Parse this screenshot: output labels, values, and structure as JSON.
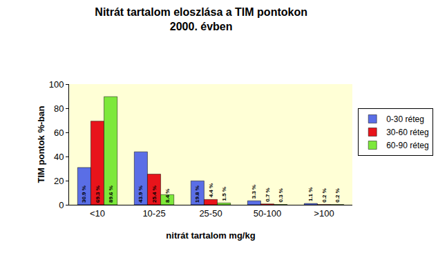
{
  "chart_data": {
    "type": "bar",
    "title": "Nitrát tartalom eloszlása a TIM pontokon\n2000. évben",
    "x_label": "nitrát tartalom mg/kg",
    "y_label": "TIM pontok %-ban",
    "categories": [
      "<10",
      "10-25",
      "25-50",
      "50-100",
      ">100"
    ],
    "series": [
      {
        "name": "0-30 réteg",
        "color": "#5a6ee6",
        "values": [
          30.9,
          43.9,
          19.8,
          3.3,
          1.1
        ],
        "value_labels": [
          "30.9 %",
          "43.9 %",
          "19.8 %",
          "3.3 %",
          "1.1 %"
        ]
      },
      {
        "name": "30-60 réteg",
        "color": "#e8141b",
        "values": [
          69.3,
          25.4,
          4.4,
          0.7,
          0.2
        ],
        "value_labels": [
          "69.3 %",
          "25.4 %",
          "4.4 %",
          "0.7 %",
          "0.2 %"
        ]
      },
      {
        "name": "60-90 réteg",
        "color": "#7de83b",
        "values": [
          89.6,
          8.4,
          1.5,
          0.3,
          0.2
        ],
        "value_labels": [
          "89.6 %",
          "8.4 %",
          "1.5 %",
          "0.3 %",
          "0.2 %"
        ]
      }
    ],
    "ylim": [
      0,
      100
    ],
    "yticks": [
      0,
      20,
      40,
      60,
      80,
      100
    ],
    "grid": false,
    "legend": "right",
    "data_labels": true
  }
}
